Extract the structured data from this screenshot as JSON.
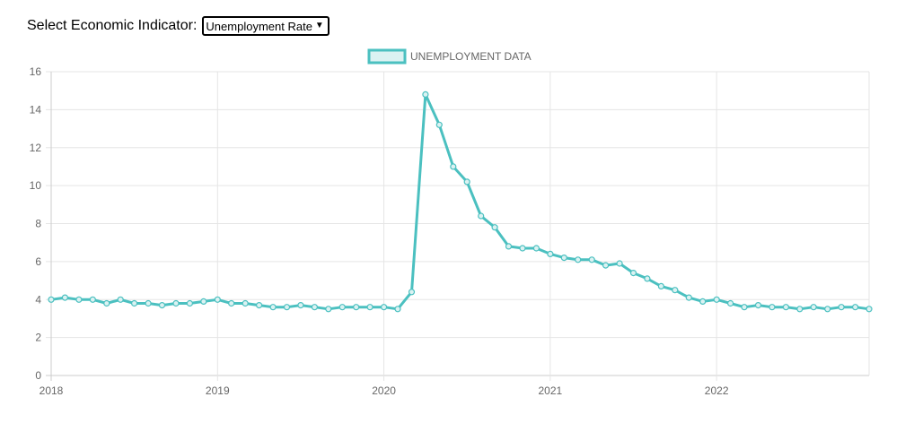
{
  "controls": {
    "indicator_label": "Select Economic Indicator:",
    "indicator_selected": "Unemployment Rate"
  },
  "colors": {
    "series_line": "#4bc0c0",
    "series_fill": "#dbf2f2",
    "grid": "#e5e5e5",
    "axis_text": "#666666"
  },
  "chart_data": {
    "type": "line",
    "title": "",
    "xlabel": "",
    "ylabel": "",
    "legend": "top",
    "grid": true,
    "ylim": [
      0,
      16
    ],
    "yticks": [
      0,
      2,
      4,
      6,
      8,
      10,
      12,
      14,
      16
    ],
    "xticks": [
      "2018",
      "2019",
      "2020",
      "2021",
      "2022"
    ],
    "x_start": "2018-01",
    "x_end": "2022-12",
    "series": [
      {
        "name": "UNEMPLOYMENT DATA",
        "x": [
          "2018-01",
          "2018-02",
          "2018-03",
          "2018-04",
          "2018-05",
          "2018-06",
          "2018-07",
          "2018-08",
          "2018-09",
          "2018-10",
          "2018-11",
          "2018-12",
          "2019-01",
          "2019-02",
          "2019-03",
          "2019-04",
          "2019-05",
          "2019-06",
          "2019-07",
          "2019-08",
          "2019-09",
          "2019-10",
          "2019-11",
          "2019-12",
          "2020-01",
          "2020-02",
          "2020-03",
          "2020-04",
          "2020-05",
          "2020-06",
          "2020-07",
          "2020-08",
          "2020-09",
          "2020-10",
          "2020-11",
          "2020-12",
          "2021-01",
          "2021-02",
          "2021-03",
          "2021-04",
          "2021-05",
          "2021-06",
          "2021-07",
          "2021-08",
          "2021-09",
          "2021-10",
          "2021-11",
          "2021-12",
          "2022-01",
          "2022-02",
          "2022-03",
          "2022-04",
          "2022-05",
          "2022-06",
          "2022-07",
          "2022-08",
          "2022-09",
          "2022-10",
          "2022-11",
          "2022-12"
        ],
        "values": [
          4.0,
          4.1,
          4.0,
          4.0,
          3.8,
          4.0,
          3.8,
          3.8,
          3.7,
          3.8,
          3.8,
          3.9,
          4.0,
          3.8,
          3.8,
          3.7,
          3.6,
          3.6,
          3.7,
          3.6,
          3.5,
          3.6,
          3.6,
          3.6,
          3.6,
          3.5,
          4.4,
          14.8,
          13.2,
          11.0,
          10.2,
          8.4,
          7.8,
          6.8,
          6.7,
          6.7,
          6.4,
          6.2,
          6.1,
          6.1,
          5.8,
          5.9,
          5.4,
          5.1,
          4.7,
          4.5,
          4.1,
          3.9,
          4.0,
          3.8,
          3.6,
          3.7,
          3.6,
          3.6,
          3.5,
          3.6,
          3.5,
          3.6,
          3.6,
          3.5
        ]
      }
    ]
  }
}
